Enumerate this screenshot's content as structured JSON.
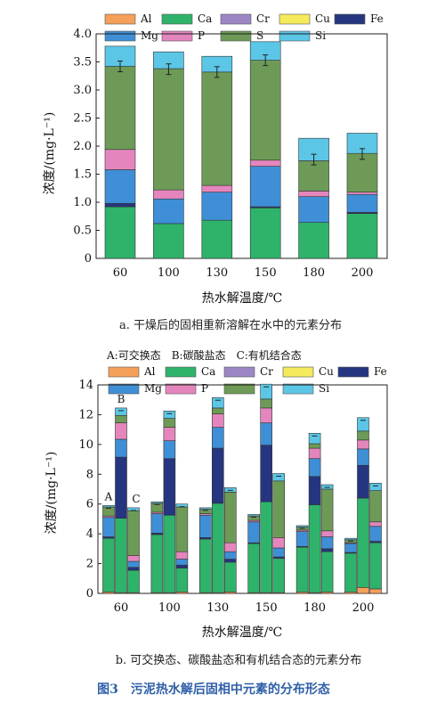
{
  "colors": {
    "Al": "#f5a05a",
    "Ca": "#2fb36b",
    "Cr": "#9c87c4",
    "Cu": "#f4ea5c",
    "Fe": "#25357f",
    "Mg": "#3f8fd6",
    "P": "#e486bd",
    "S": "#6d9b57",
    "Si": "#5cc6e6"
  },
  "legend": {
    "row1": [
      "Al",
      "Ca",
      "Cr",
      "Cu",
      "Fe"
    ],
    "row2": [
      "Mg",
      "P",
      "S",
      "Si"
    ]
  },
  "captions": {
    "a": "a. 干燥后的固相重新溶解在水中的元素分布",
    "b": "b. 可交换态、碳酸盐态和有机结合态的元素分布",
    "figure": "图3　污泥热水解后固相中元素的分布形态",
    "b_legend": "A:可交换态　B:碳酸盐态　C:有机结合态"
  },
  "chart_data": [
    {
      "type": "bar",
      "stacked": true,
      "xlabel": "热水解温度/℃",
      "ylabel": "浓度/(mg·L⁻¹)",
      "ylim": [
        0,
        4.0
      ],
      "yticks": [
        "0",
        "0.5",
        "1.0",
        "1.5",
        "2.0",
        "2.5",
        "3.0",
        "3.5",
        "4.0"
      ],
      "categories": [
        "60",
        "100",
        "130",
        "150",
        "180",
        "200"
      ],
      "series": [
        {
          "name": "Al",
          "values": [
            0.0,
            0.0,
            0.0,
            0.0,
            0.0,
            0.0
          ]
        },
        {
          "name": "Ca",
          "values": [
            0.92,
            0.62,
            0.68,
            0.9,
            0.64,
            0.8
          ]
        },
        {
          "name": "Cr",
          "values": [
            0.0,
            0.0,
            0.0,
            0.0,
            0.0,
            0.0
          ]
        },
        {
          "name": "Cu",
          "values": [
            0.0,
            0.0,
            0.0,
            0.0,
            0.0,
            0.0
          ]
        },
        {
          "name": "Fe",
          "values": [
            0.06,
            0.0,
            0.0,
            0.02,
            0.0,
            0.02
          ]
        },
        {
          "name": "Mg",
          "values": [
            0.6,
            0.44,
            0.5,
            0.72,
            0.46,
            0.32
          ]
        },
        {
          "name": "P",
          "values": [
            0.36,
            0.16,
            0.12,
            0.11,
            0.1,
            0.04
          ]
        },
        {
          "name": "S",
          "values": [
            1.48,
            2.16,
            2.02,
            1.78,
            0.54,
            0.69
          ]
        },
        {
          "name": "Si",
          "values": [
            0.36,
            0.3,
            0.28,
            0.33,
            0.4,
            0.36
          ]
        }
      ],
      "error_at": [
        3.42,
        3.37,
        3.32,
        3.53,
        1.76,
        1.86
      ]
    },
    {
      "type": "bar",
      "stacked": true,
      "grouped": true,
      "group_labels": [
        "A",
        "B",
        "C"
      ],
      "xlabel": "热水解温度/℃",
      "ylabel": "浓度/(mg·L⁻¹)",
      "ylim": [
        0,
        14
      ],
      "yticks": [
        "0",
        "2",
        "4",
        "6",
        "8",
        "10",
        "12",
        "14"
      ],
      "categories": [
        "60",
        "100",
        "130",
        "150",
        "180",
        "200"
      ],
      "groups": [
        {
          "label": "A",
          "series": [
            {
              "name": "Al",
              "values": [
                0.1,
                0.05,
                0.05,
                0.05,
                0.1,
                0.1
              ]
            },
            {
              "name": "Ca",
              "values": [
                3.6,
                3.9,
                3.6,
                3.3,
                3.0,
                2.6
              ]
            },
            {
              "name": "Cr",
              "values": [
                0.0,
                0.0,
                0.0,
                0.0,
                0.0,
                0.0
              ]
            },
            {
              "name": "Cu",
              "values": [
                0.0,
                0.0,
                0.0,
                0.0,
                0.0,
                0.0
              ]
            },
            {
              "name": "Fe",
              "values": [
                0.1,
                0.1,
                0.1,
                0.05,
                0.05,
                0.05
              ]
            },
            {
              "name": "Mg",
              "values": [
                1.3,
                1.3,
                1.5,
                1.4,
                1.0,
                0.6
              ]
            },
            {
              "name": "P",
              "values": [
                0.1,
                0.1,
                0.1,
                0.1,
                0.1,
                0.05
              ]
            },
            {
              "name": "S",
              "values": [
                0.6,
                0.6,
                0.3,
                0.3,
                0.2,
                0.2
              ]
            },
            {
              "name": "Si",
              "values": [
                0.1,
                0.1,
                0.1,
                0.1,
                0.1,
                0.1
              ]
            }
          ]
        },
        {
          "label": "B",
          "series": [
            {
              "name": "Al",
              "values": [
                0.05,
                0.05,
                0.05,
                0.05,
                0.05,
                0.4
              ]
            },
            {
              "name": "Ca",
              "values": [
                5.0,
                5.2,
                6.0,
                6.1,
                5.9,
                6.0
              ]
            },
            {
              "name": "Cr",
              "values": [
                0.0,
                0.0,
                0.0,
                0.0,
                0.0,
                0.0
              ]
            },
            {
              "name": "Cu",
              "values": [
                0.0,
                0.0,
                0.0,
                0.0,
                0.0,
                0.0
              ]
            },
            {
              "name": "Fe",
              "values": [
                4.1,
                3.8,
                3.7,
                3.8,
                1.9,
                2.2
              ]
            },
            {
              "name": "Mg",
              "values": [
                1.2,
                1.2,
                1.4,
                1.5,
                1.2,
                1.1
              ]
            },
            {
              "name": "P",
              "values": [
                1.1,
                0.9,
                0.9,
                1.0,
                0.7,
                0.6
              ]
            },
            {
              "name": "S",
              "values": [
                0.5,
                0.6,
                0.4,
                0.6,
                0.3,
                0.6
              ]
            },
            {
              "name": "Si",
              "values": [
                0.5,
                0.5,
                0.7,
                1.0,
                0.7,
                0.9
              ]
            }
          ]
        },
        {
          "label": "C",
          "series": [
            {
              "name": "Al",
              "values": [
                0.05,
                0.1,
                0.1,
                0.05,
                0.1,
                0.3
              ]
            },
            {
              "name": "Ca",
              "values": [
                1.5,
                1.6,
                2.0,
                2.3,
                2.7,
                3.1
              ]
            },
            {
              "name": "Cr",
              "values": [
                0.0,
                0.0,
                0.0,
                0.0,
                0.0,
                0.0
              ]
            },
            {
              "name": "Cu",
              "values": [
                0.0,
                0.0,
                0.0,
                0.0,
                0.0,
                0.0
              ]
            },
            {
              "name": "Fe",
              "values": [
                0.2,
                0.2,
                0.2,
                0.1,
                0.2,
                0.1
              ]
            },
            {
              "name": "Mg",
              "values": [
                0.4,
                0.4,
                0.5,
                0.6,
                0.8,
                1.0
              ]
            },
            {
              "name": "P",
              "values": [
                0.4,
                0.5,
                0.6,
                0.7,
                0.4,
                0.3
              ]
            },
            {
              "name": "S",
              "values": [
                3.0,
                3.0,
                3.4,
                3.8,
                2.8,
                2.1
              ]
            },
            {
              "name": "Si",
              "values": [
                0.2,
                0.2,
                0.3,
                0.5,
                0.3,
                0.5
              ]
            }
          ]
        }
      ]
    }
  ]
}
